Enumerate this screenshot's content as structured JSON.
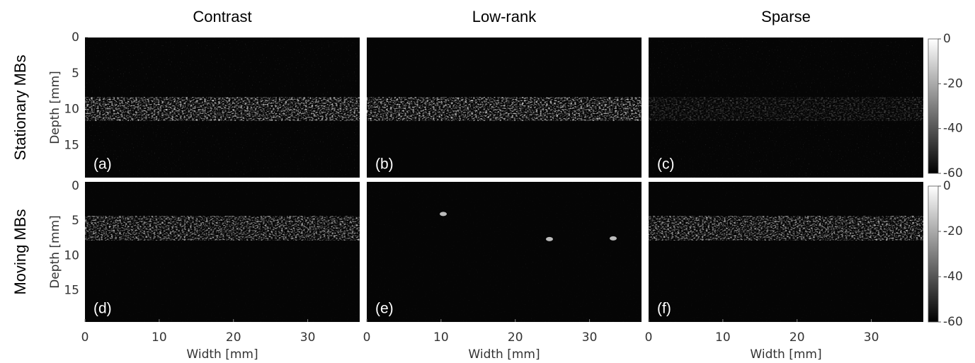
{
  "column_titles": [
    "Contrast",
    "Low-rank",
    "Sparse"
  ],
  "row_labels": [
    "Stationary MBs",
    "Moving MBs"
  ],
  "panel_labels": [
    "(a)",
    "(b)",
    "(c)",
    "(d)",
    "(e)",
    "(f)"
  ],
  "y_axis": {
    "label": "Depth [mm]",
    "lim": [
      0,
      19.5
    ],
    "ticks": [
      0,
      5,
      10,
      15
    ]
  },
  "x_axis": {
    "label": "Width [mm]",
    "lim": [
      0,
      37
    ],
    "ticks": [
      0,
      10,
      20,
      30
    ]
  },
  "colorbar": {
    "lim": [
      -60,
      0
    ],
    "ticks": [
      0,
      -20,
      -40,
      -60
    ]
  }
}
